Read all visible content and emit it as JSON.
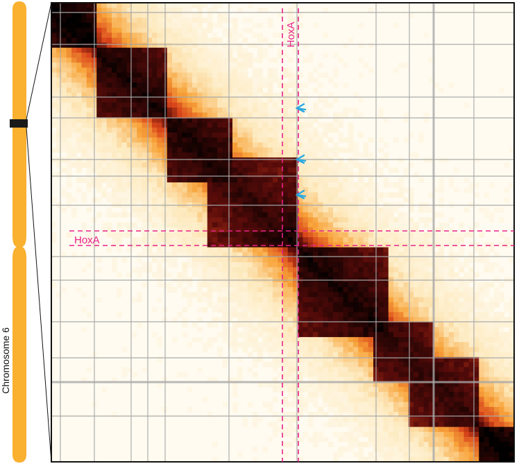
{
  "chromosome": {
    "label": "Chromosome 6",
    "color": "#f9b12f",
    "band_color": "#1a1a1a"
  },
  "heatmap": {
    "colormap": [
      "#fffbf0",
      "#fde9bd",
      "#f8a43a",
      "#d9451a",
      "#5a0c0a",
      "#000000"
    ],
    "grid_color": "#a8a8a8",
    "border_color": "#111111"
  },
  "annotations": {
    "hoxa_vertical_label": "HoxA",
    "hoxa_horizontal_label": "HoxA",
    "marker_color": "#e8218c",
    "arrow_color": "#29a8e0",
    "arrow_count": 3
  }
}
